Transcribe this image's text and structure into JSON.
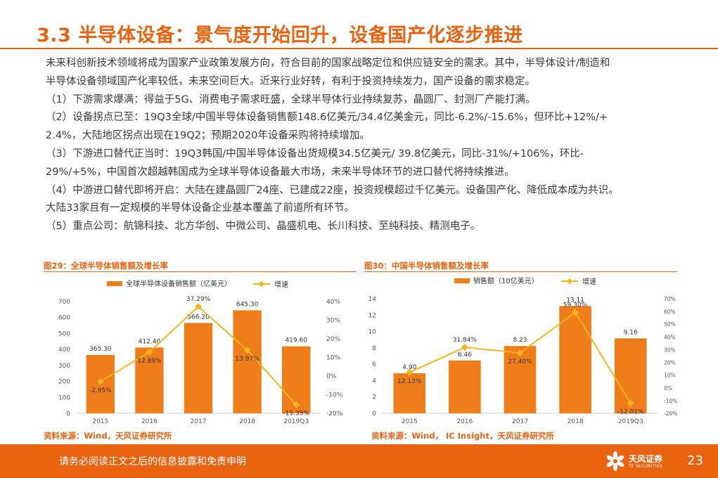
{
  "slide": {
    "title": "3.3 半导体设备：景气度开始回升，设备国产化逐步推进",
    "paragraphs": [
      "未来科创新技术领域将成为国家产业政策发展方向，符合目前的国家战略定位和供应链安全的需求。其中，半导体设计/制造和",
      "半导体设备领域国产化率较低，未来空间巨大。近来行业好转，有利于投资持续发力，国产设备的需求稳定。",
      "（1）下游需求爆满：得益于5G、消费电子需求旺盛，全球半导体行业持续复苏，晶圆厂、封测厂产能打满。",
      "（2）设备拐点已至：19Q3全球/中国半导体设备销售额148.6亿美元/34.4亿美金元，同比-6.2%/-15.6%，但环比+12%/+",
      "2.4%，大陆地区拐点出现在19Q2；预期2020年设备采购将持续增加。",
      "（3）下游进口替代正当时：19Q3韩国/中国半导体设备出货规模34.5亿美元/ 39.8亿美元，同比-31%/+106%，环比-",
      "29%/+5%，中国首次超越韩国成为全球半导体设备最大市场，未来半导体环节的进口替代将持续推进。",
      "（4）中游进口替代即将开启：大陆在建晶圆厂24座、已建成22座，投资规模超过千亿美元。设备国产化、降低成本成为共识。",
      "大陆33家且有一定规模的半导体设备企业基本覆盖了前道所有环节。",
      "（5）重点公司：航锦科技、北方华创、中微公司、晶盛机电、长川科技、至纯科技、精测电子。"
    ]
  },
  "charts": [
    {
      "caption": "图29：全球半导体销售额及增长率",
      "source": "资料来源：Wind，天风证券研究所"
    },
    {
      "caption": "图30：中国半导体销售额及增长率",
      "source": "资料来源：Wind， IC Insight，天风证券研究所"
    }
  ],
  "chart_data": [
    {
      "type": "bar",
      "categories": [
        "2015",
        "2016",
        "2017",
        "2018",
        "2019Q3"
      ],
      "series": [
        {
          "name": "全球半导体设备销售额（亿美元）",
          "type": "bar",
          "axis": "left",
          "values": [
            365.3,
            412.4,
            566.2,
            645.3,
            419.6
          ],
          "labels": [
            "365.30",
            "412.40",
            "566.20",
            "645.30",
            "419.60"
          ]
        },
        {
          "name": "增速",
          "type": "line",
          "axis": "right",
          "values": [
            -2.95,
            12.89,
            37.29,
            13.97,
            -15.35
          ],
          "labels": [
            "-2.95%",
            "12.89%",
            "37.29%",
            "13.97%",
            "-15.35%"
          ]
        }
      ],
      "y_left": {
        "lim": [
          0,
          700
        ],
        "ticks": [
          "0",
          "100",
          "200",
          "300",
          "400",
          "500",
          "600",
          "700"
        ]
      },
      "y_right": {
        "lim": [
          -20,
          40
        ],
        "ticks": [
          "-20%",
          "-10%",
          "0%",
          "10%",
          "20%",
          "30%",
          "40%"
        ]
      },
      "legend": "top",
      "grid": false,
      "colors": {
        "bar": "#ee7d1a",
        "line": "#f5b51e"
      }
    },
    {
      "type": "bar",
      "categories": [
        "2015",
        "2016",
        "2017",
        "2018",
        "2019Q3"
      ],
      "series": [
        {
          "name": "销售额（10亿美元）",
          "type": "bar",
          "axis": "left",
          "values": [
            4.9,
            6.46,
            8.23,
            13.11,
            9.16
          ],
          "labels": [
            "4.90",
            "6.46",
            "8.23",
            "13.11",
            "9.16"
          ]
        },
        {
          "name": "增速",
          "type": "line",
          "axis": "right",
          "values": [
            12.13,
            31.84,
            27.4,
            59.3,
            -12.01
          ],
          "labels": [
            "12.13%",
            "31.84%",
            "27.40%",
            "59.30%",
            "-12.01%"
          ]
        }
      ],
      "y_left": {
        "lim": [
          0,
          14
        ],
        "ticks": [
          "0",
          "2",
          "4",
          "6",
          "8",
          "10",
          "12",
          "14"
        ]
      },
      "y_right": {
        "lim": [
          -20,
          70
        ],
        "ticks": [
          "-20%",
          "-10%",
          "0%",
          "10%",
          "20%",
          "30%",
          "40%",
          "50%",
          "60%",
          "70%"
        ]
      },
      "legend": "top",
      "grid": false,
      "colors": {
        "bar": "#ee7d1a",
        "line": "#f5b51e"
      }
    }
  ],
  "footer": {
    "disclaimer": "请务必阅读正文之后的信息披露和免责申明",
    "logo_name": "天风证券",
    "logo_sub": "TF SECURITIES",
    "page_number": "23",
    "color": "#e8620f"
  }
}
